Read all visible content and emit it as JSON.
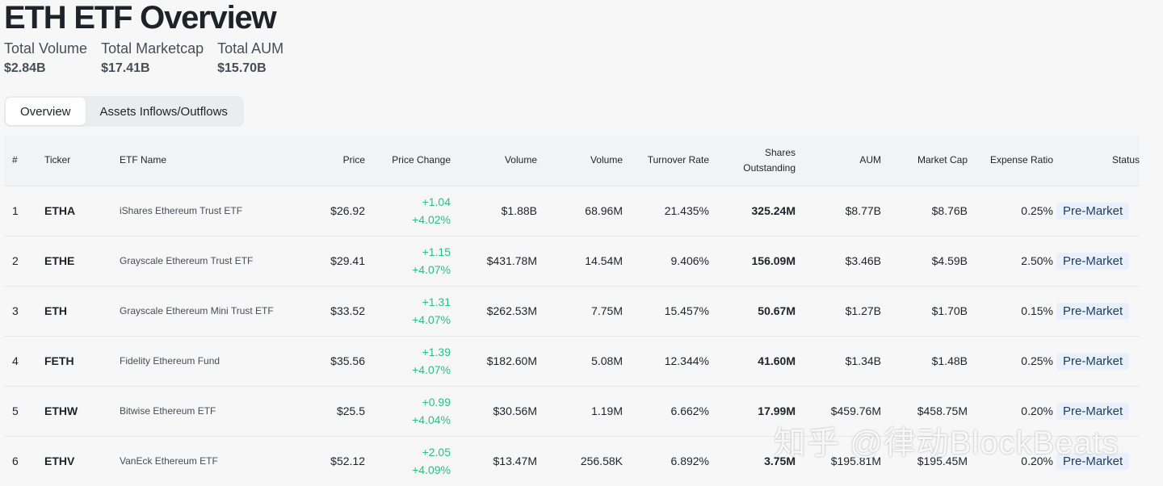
{
  "page": {
    "title": "ETH ETF Overview"
  },
  "stats": [
    {
      "label": "Total Volume",
      "value": "$2.84B"
    },
    {
      "label": "Total Marketcap",
      "value": "$17.41B"
    },
    {
      "label": "Total AUM",
      "value": "$15.70B"
    }
  ],
  "tabs": [
    {
      "label": "Overview",
      "active": true
    },
    {
      "label": "Assets Inflows/Outflows",
      "active": false
    }
  ],
  "table": {
    "headers": {
      "num": "#",
      "ticker": "Ticker",
      "name": "ETF Name",
      "price": "Price",
      "change": "Price Change",
      "volume_usd": "Volume",
      "volume_shares": "Volume",
      "turnover": "Turnover Rate",
      "shares_line1": "Shares",
      "shares_line2": "Outstanding",
      "aum": "AUM",
      "mcap": "Market Cap",
      "expense": "Expense Ratio",
      "status": "Status"
    },
    "rows": [
      {
        "num": "1",
        "ticker": "ETHA",
        "name": "iShares Ethereum Trust ETF",
        "price": "$26.92",
        "change_abs": "+1.04",
        "change_pct": "+4.02%",
        "volume_usd": "$1.88B",
        "volume_shares": "68.96M",
        "turnover": "21.435%",
        "shares": "325.24M",
        "aum": "$8.77B",
        "mcap": "$8.76B",
        "expense": "0.25%",
        "status": "Pre-Market"
      },
      {
        "num": "2",
        "ticker": "ETHE",
        "name": "Grayscale Ethereum Trust ETF",
        "price": "$29.41",
        "change_abs": "+1.15",
        "change_pct": "+4.07%",
        "volume_usd": "$431.78M",
        "volume_shares": "14.54M",
        "turnover": "9.406%",
        "shares": "156.09M",
        "aum": "$3.46B",
        "mcap": "$4.59B",
        "expense": "2.50%",
        "status": "Pre-Market"
      },
      {
        "num": "3",
        "ticker": "ETH",
        "name": "Grayscale Ethereum Mini Trust ETF",
        "price": "$33.52",
        "change_abs": "+1.31",
        "change_pct": "+4.07%",
        "volume_usd": "$262.53M",
        "volume_shares": "7.75M",
        "turnover": "15.457%",
        "shares": "50.67M",
        "aum": "$1.27B",
        "mcap": "$1.70B",
        "expense": "0.15%",
        "status": "Pre-Market"
      },
      {
        "num": "4",
        "ticker": "FETH",
        "name": "Fidelity Ethereum Fund",
        "price": "$35.56",
        "change_abs": "+1.39",
        "change_pct": "+4.07%",
        "volume_usd": "$182.60M",
        "volume_shares": "5.08M",
        "turnover": "12.344%",
        "shares": "41.60M",
        "aum": "$1.34B",
        "mcap": "$1.48B",
        "expense": "0.25%",
        "status": "Pre-Market"
      },
      {
        "num": "5",
        "ticker": "ETHW",
        "name": "Bitwise Ethereum ETF",
        "price": "$25.5",
        "change_abs": "+0.99",
        "change_pct": "+4.04%",
        "volume_usd": "$30.56M",
        "volume_shares": "1.19M",
        "turnover": "6.662%",
        "shares": "17.99M",
        "aum": "$459.76M",
        "mcap": "$458.75M",
        "expense": "0.20%",
        "status": "Pre-Market"
      },
      {
        "num": "6",
        "ticker": "ETHV",
        "name": "VanEck Ethereum ETF",
        "price": "$52.12",
        "change_abs": "+2.05",
        "change_pct": "+4.09%",
        "volume_usd": "$13.47M",
        "volume_shares": "256.58K",
        "turnover": "6.892%",
        "shares": "3.75M",
        "aum": "$195.81M",
        "mcap": "$195.45M",
        "expense": "0.20%",
        "status": "Pre-Market"
      }
    ]
  },
  "watermark": "知乎 @律动BlockBeats",
  "colors": {
    "positive": "#2ebd85",
    "badge_bg": "#e8f1fb",
    "badge_text": "#1e3a5f"
  }
}
